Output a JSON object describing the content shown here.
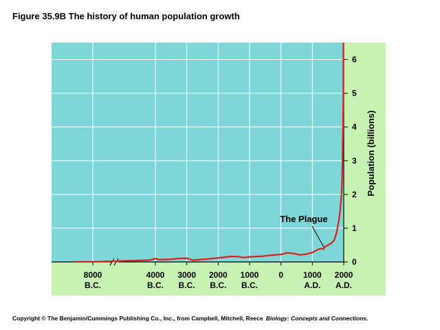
{
  "figure": {
    "title": "Figure 35.9B  The history of human population growth",
    "footer_prefix": "Copyright © The Benjamin/Cummings Publishing Co., Inc., from Campbell, Mitchell, Reece",
    "footer_book": "Biology: Concepts and Connections."
  },
  "colors": {
    "plot_bg": "#7fd6d6",
    "outer_bg": "#c8f2b4",
    "curve": "#dd1c1c",
    "grid": "#ffffff"
  },
  "chart_data": {
    "type": "line",
    "title": "Figure 35.9B  The history of human population growth",
    "xlabel": "",
    "ylabel": "Population (billions)",
    "x_axis_break": "between 8000 B.C. and 4000 B.C.",
    "x_ticks": [
      {
        "value": -8000,
        "line1": "8000",
        "line2": "B.C."
      },
      {
        "value": -4000,
        "line1": "4000",
        "line2": "B.C."
      },
      {
        "value": -3000,
        "line1": "3000",
        "line2": "B.C."
      },
      {
        "value": -2000,
        "line1": "2000",
        "line2": "B.C."
      },
      {
        "value": -1000,
        "line1": "1000",
        "line2": "B.C."
      },
      {
        "value": 0,
        "line1": "0",
        "line2": ""
      },
      {
        "value": 1000,
        "line1": "1000",
        "line2": "A.D."
      },
      {
        "value": 2000,
        "line1": "2000",
        "line2": "A.D."
      }
    ],
    "y_ticks": [
      "0",
      "1",
      "2",
      "3",
      "4",
      "5",
      "6"
    ],
    "ylim": [
      0,
      6.5
    ],
    "grid": true,
    "series": [
      {
        "values": [
          [
            -9300,
            0.005
          ],
          [
            -8000,
            0.005
          ],
          [
            -7500,
            0.01
          ],
          [
            -4500,
            0.05
          ],
          [
            -4200,
            0.07
          ],
          [
            -4000,
            0.1
          ],
          [
            -3900,
            0.07
          ],
          [
            -3500,
            0.08
          ],
          [
            -3300,
            0.1
          ],
          [
            -3000,
            0.11
          ],
          [
            -2800,
            0.05
          ],
          [
            -2600,
            0.07
          ],
          [
            -2300,
            0.09
          ],
          [
            -2000,
            0.12
          ],
          [
            -1600,
            0.16
          ],
          [
            -1400,
            0.16
          ],
          [
            -1200,
            0.13
          ],
          [
            -1000,
            0.15
          ],
          [
            -600,
            0.17
          ],
          [
            -300,
            0.2
          ],
          [
            0,
            0.22
          ],
          [
            200,
            0.27
          ],
          [
            400,
            0.25
          ],
          [
            600,
            0.21
          ],
          [
            800,
            0.23
          ],
          [
            1000,
            0.28
          ],
          [
            1200,
            0.38
          ],
          [
            1300,
            0.4
          ],
          [
            1350,
            0.37
          ],
          [
            1400,
            0.45
          ],
          [
            1500,
            0.5
          ],
          [
            1600,
            0.55
          ],
          [
            1700,
            0.65
          ],
          [
            1750,
            0.8
          ],
          [
            1800,
            1.0
          ],
          [
            1850,
            1.25
          ],
          [
            1900,
            1.65
          ],
          [
            1930,
            2.0
          ],
          [
            1950,
            2.5
          ],
          [
            1960,
            3.0
          ],
          [
            1975,
            4.0
          ],
          [
            1987,
            5.0
          ],
          [
            1999,
            6.0
          ],
          [
            2003,
            6.6
          ]
        ]
      }
    ],
    "annotations": [
      {
        "text": "The Plague",
        "points_to_x": 1350,
        "points_to_y": 0.37
      }
    ]
  }
}
